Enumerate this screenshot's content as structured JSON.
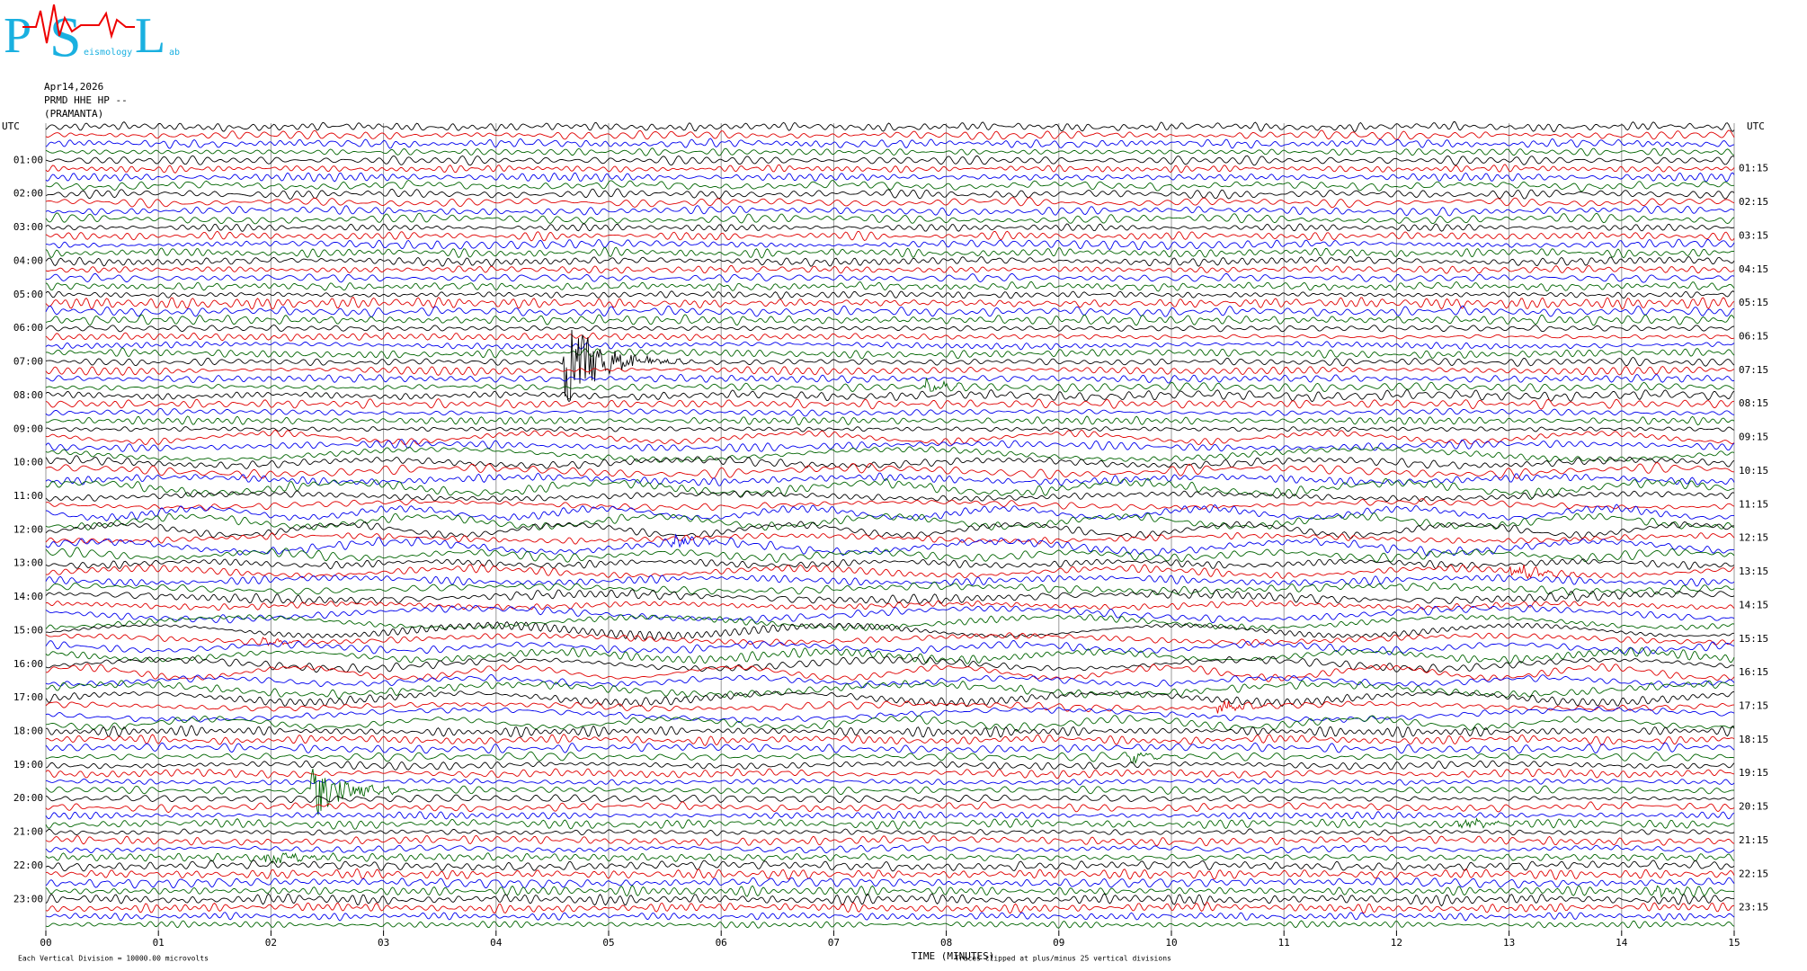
{
  "chart_data": {
    "type": "helicorder",
    "logo": {
      "letters": [
        "P",
        "S",
        "L"
      ],
      "words": [
        "eismology",
        "ab"
      ]
    },
    "date": "Apr14,2026",
    "station": "PRMD HHE HP --",
    "site": "(PRAMANTA)",
    "left_axis_label": "UTC",
    "right_axis_label": "UTC",
    "left_labels": [
      "01:00",
      "02:00",
      "03:00",
      "04:00",
      "05:00",
      "06:00",
      "07:00",
      "08:00",
      "09:00",
      "10:00",
      "11:00",
      "12:00",
      "13:00",
      "14:00",
      "15:00",
      "16:00",
      "17:00",
      "18:00",
      "19:00",
      "20:00",
      "21:00",
      "22:00",
      "23:00"
    ],
    "right_labels": [
      "01:15",
      "02:15",
      "03:15",
      "04:15",
      "05:15",
      "06:15",
      "07:15",
      "08:15",
      "09:15",
      "10:15",
      "11:15",
      "12:15",
      "13:15",
      "14:15",
      "15:15",
      "16:15",
      "17:15",
      "18:15",
      "19:15",
      "20:15",
      "21:15",
      "22:15",
      "23:15"
    ],
    "x_label": "TIME (MINUTES)",
    "xlim": [
      0,
      15
    ],
    "xticks": [
      {
        "value": 0,
        "label": "00"
      },
      {
        "value": 1,
        "label": "01"
      },
      {
        "value": 2,
        "label": "02"
      },
      {
        "value": 3,
        "label": "03"
      },
      {
        "value": 4,
        "label": "04"
      },
      {
        "value": 5,
        "label": "05"
      },
      {
        "value": 6,
        "label": "06"
      },
      {
        "value": 7,
        "label": "07"
      },
      {
        "value": 8,
        "label": "08"
      },
      {
        "value": 9,
        "label": "09"
      },
      10,
      11,
      12,
      13,
      14,
      15
    ],
    "grid": true,
    "colors": [
      "#000000",
      "#e00000",
      "#0000ee",
      "#006400"
    ],
    "scale_note": "Each Vertical Division = 10000.00 microvolts",
    "clip_note": "Traces clipped at plus/minus 25 vertical divisions"
  }
}
